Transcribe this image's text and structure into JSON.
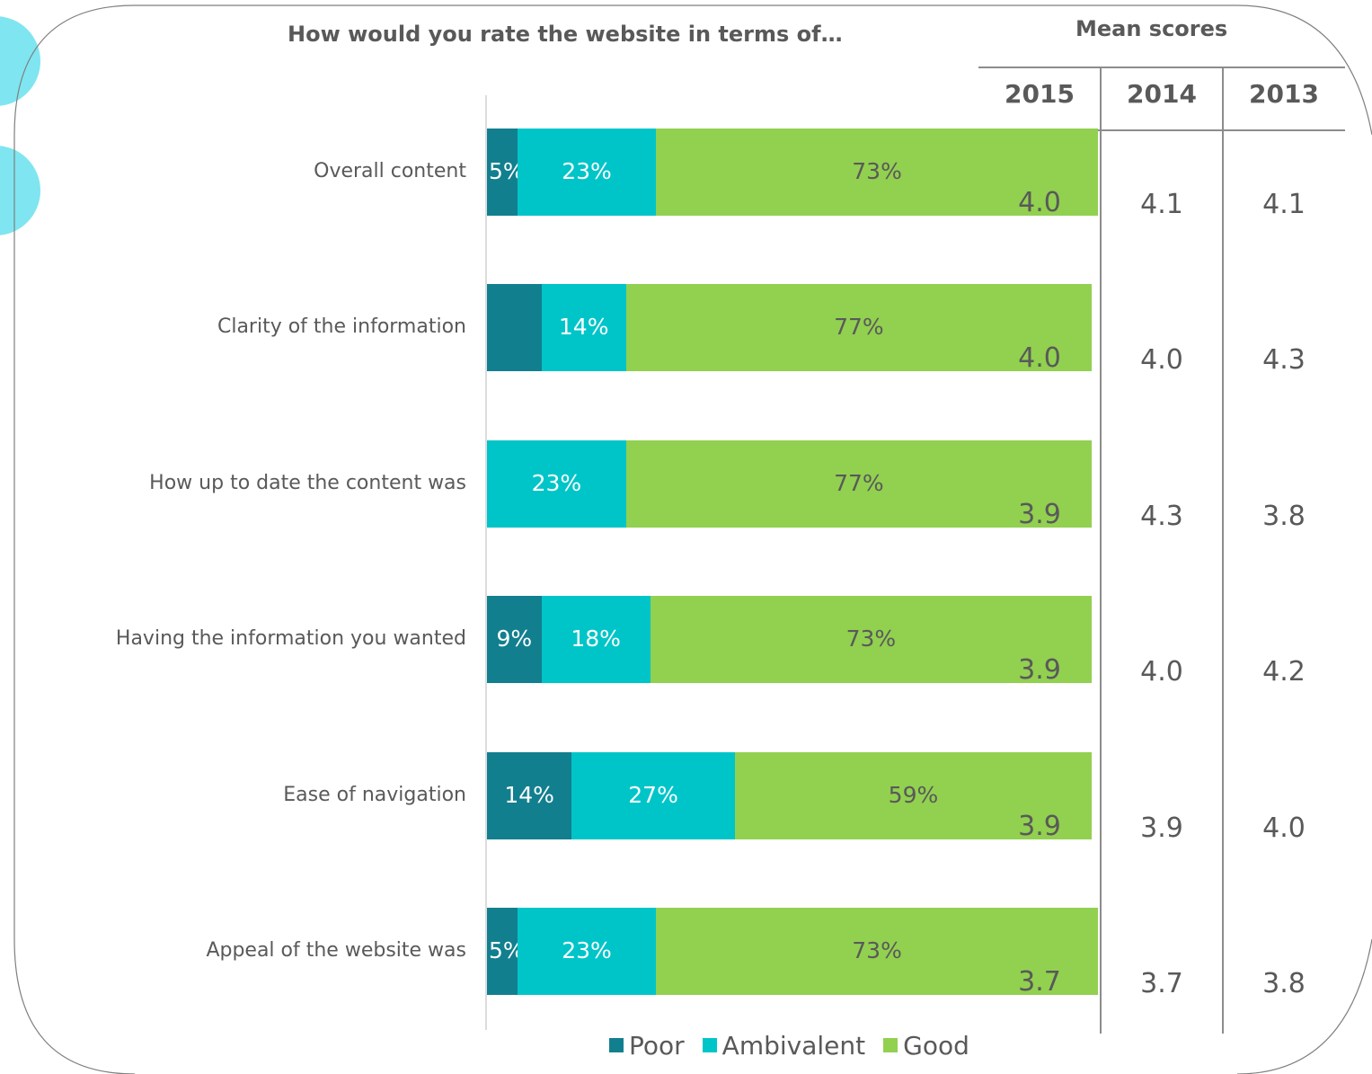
{
  "chart_data": {
    "type": "bar",
    "orientation": "horizontal",
    "stacked": true,
    "title": "How would you rate the website in terms of…",
    "categories": [
      "Overall content",
      "Clarity of the information",
      "How up to date the content was",
      "Having the information you wanted",
      "Ease of navigation",
      "Appeal of the website was"
    ],
    "series": [
      {
        "name": "Poor",
        "color": "#127f8f",
        "values": [
          5,
          9,
          0,
          9,
          14,
          5
        ],
        "labels": [
          "5%",
          "",
          "%",
          "9%",
          "14%",
          "5%"
        ]
      },
      {
        "name": "Ambivalent",
        "color": "#00c5c8",
        "values": [
          23,
          14,
          23,
          18,
          27,
          23
        ],
        "labels": [
          "23%",
          "14%",
          "23%",
          "18%",
          "27%",
          "23%"
        ]
      },
      {
        "name": "Good",
        "color": "#92d050",
        "values": [
          73,
          77,
          77,
          73,
          59,
          73
        ],
        "labels": [
          "73%",
          "77%",
          "77%",
          "73%",
          "59%",
          "73%"
        ]
      }
    ],
    "xlim": [
      0,
      100
    ],
    "legend_position": "bottom"
  },
  "mean_scores": {
    "title": "Mean scores",
    "years": [
      "2015",
      "2014",
      "2013"
    ],
    "rows": [
      [
        "4.0",
        "4.1",
        "4.1"
      ],
      [
        "4.0",
        "4.0",
        "4.3"
      ],
      [
        "3.9",
        "4.3",
        "3.8"
      ],
      [
        "3.9",
        "4.0",
        "4.2"
      ],
      [
        "3.9",
        "3.9",
        "4.0"
      ],
      [
        "3.7",
        "3.7",
        "3.8"
      ]
    ]
  },
  "label_colors": {
    "Poor": "#ffffff",
    "Ambivalent": "#ffffff",
    "Good": "#595959"
  },
  "decor_color": "#7fe5f0"
}
